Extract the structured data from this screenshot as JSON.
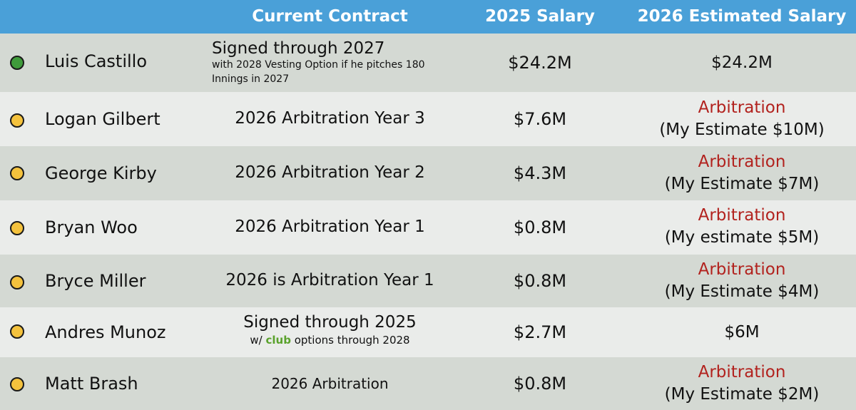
{
  "headers": {
    "contract": "Current Contract",
    "salary_2025": "2025 Salary",
    "salary_2026": "2026 Estimated Salary"
  },
  "status_colors": {
    "green": "#3f9b3b",
    "yellow": "#f4c23d"
  },
  "rows": [
    {
      "status": "green",
      "name": "Luis Castillo",
      "contract": "Signed through 2027",
      "contract_note": "with 2028 Vesting Option if he pitches 180",
      "contract_note2": "Innings in 2027",
      "salary_2025": "$24.2M",
      "salary_2026": "$24.2M"
    },
    {
      "status": "yellow",
      "name": "Logan Gilbert",
      "contract": "2026 Arbitration Year 3",
      "salary_2025": "$7.6M",
      "salary_2026_label": "Arbitration",
      "salary_2026_estimate": "(My Estimate $10M)"
    },
    {
      "status": "yellow",
      "name": "George Kirby",
      "contract": "2026 Arbitration Year 2",
      "salary_2025": "$4.3M",
      "salary_2026_label": "Arbitration",
      "salary_2026_estimate": "(My Estimate $7M)"
    },
    {
      "status": "yellow",
      "name": "Bryan Woo",
      "contract": "2026 Arbitration Year 1",
      "salary_2025": "$0.8M",
      "salary_2026_label": "Arbitration",
      "salary_2026_estimate": "(My estimate $5M)"
    },
    {
      "status": "yellow",
      "name": "Bryce Miller",
      "contract": "2026 is Arbitration Year 1",
      "salary_2025": "$0.8M",
      "salary_2026_label": "Arbitration",
      "salary_2026_estimate": "(My Estimate $4M)"
    },
    {
      "status": "yellow",
      "name": "Andres Munoz",
      "contract": "Signed through 2025",
      "contract_note_prefix": "w/ ",
      "contract_note_highlight": "club",
      "contract_note_suffix": " options through 2028",
      "salary_2025": "$2.7M",
      "salary_2026": "$6M"
    },
    {
      "status": "yellow",
      "name": "Matt Brash",
      "contract": "2026 Arbitration",
      "salary_2025": "$0.8M",
      "salary_2026_label": "Arbitration",
      "salary_2026_estimate": "(My Estimate $2M)"
    }
  ]
}
